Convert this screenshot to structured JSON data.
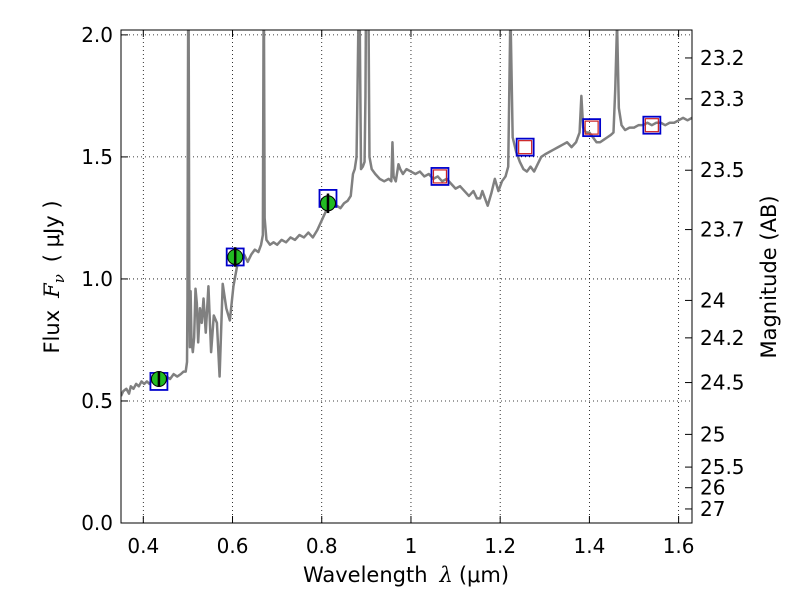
{
  "chart_data": {
    "type": "line",
    "x_axis": {
      "label_prefix": "Wavelength",
      "label_symbol": "λ",
      "label_unit": "(μm)",
      "range": [
        0.35,
        1.63
      ],
      "ticks": [
        0.4,
        0.6,
        0.8,
        1.0,
        1.2,
        1.4,
        1.6
      ],
      "tick_labels": [
        "0.4",
        "0.6",
        "0.8",
        "1",
        "1.2",
        "1.4",
        "1.6"
      ]
    },
    "y_axis_left": {
      "label_prefix": "Flux",
      "label_symbol": "F",
      "label_subscript": "ν",
      "label_unit": "( μJy )",
      "range": [
        0.0,
        2.02
      ],
      "ticks": [
        0.0,
        0.5,
        1.0,
        1.5,
        2.0
      ],
      "tick_labels": [
        "0.0",
        "0.5",
        "1.0",
        "1.5",
        "2.0"
      ]
    },
    "y_axis_right": {
      "label": "Magnitude (AB)",
      "tick_labels": [
        "23.2",
        "23.3",
        "23.5",
        "23.7",
        "24",
        "24.2",
        "24.5",
        "25",
        "25.5",
        "26",
        "27"
      ],
      "tick_magnitudes": [
        23.2,
        23.3,
        23.5,
        23.7,
        24.0,
        24.2,
        24.5,
        25.0,
        25.5,
        26.0,
        27.0
      ]
    },
    "grid": true,
    "colors": {
      "spectrum": "#808080",
      "detection_fill": "#22bb22",
      "model_box": "#0000cc",
      "upper_limit_box": "#cc2222"
    },
    "series": [
      {
        "kind": "model_spectrum",
        "points": [
          [
            0.35,
            0.52
          ],
          [
            0.355,
            0.54
          ],
          [
            0.362,
            0.55
          ],
          [
            0.368,
            0.53
          ],
          [
            0.372,
            0.56
          ],
          [
            0.378,
            0.55
          ],
          [
            0.384,
            0.57
          ],
          [
            0.39,
            0.56
          ],
          [
            0.396,
            0.58
          ],
          [
            0.402,
            0.57
          ],
          [
            0.408,
            0.58
          ],
          [
            0.414,
            0.57
          ],
          [
            0.42,
            0.59
          ],
          [
            0.428,
            0.58
          ],
          [
            0.436,
            0.59
          ],
          [
            0.444,
            0.58
          ],
          [
            0.452,
            0.6
          ],
          [
            0.46,
            0.59
          ],
          [
            0.468,
            0.61
          ],
          [
            0.476,
            0.6
          ],
          [
            0.484,
            0.61
          ],
          [
            0.49,
            0.62
          ],
          [
            0.495,
            0.62
          ],
          [
            0.498,
            0.66
          ],
          [
            0.499,
            0.92
          ],
          [
            0.5,
            1.7
          ],
          [
            0.501,
            2.4
          ],
          [
            0.502,
            1.8
          ],
          [
            0.503,
            1.0
          ],
          [
            0.5045,
            0.72
          ],
          [
            0.506,
            0.95
          ],
          [
            0.508,
            0.75
          ],
          [
            0.511,
            0.7
          ],
          [
            0.514,
            0.76
          ],
          [
            0.517,
            0.96
          ],
          [
            0.52,
            0.9
          ],
          [
            0.523,
            0.74
          ],
          [
            0.527,
            0.88
          ],
          [
            0.531,
            0.82
          ],
          [
            0.535,
            0.92
          ],
          [
            0.54,
            0.78
          ],
          [
            0.546,
            0.97
          ],
          [
            0.552,
            0.7
          ],
          [
            0.558,
            0.85
          ],
          [
            0.565,
            0.82
          ],
          [
            0.571,
            0.6
          ],
          [
            0.578,
            0.98
          ],
          [
            0.586,
            0.88
          ],
          [
            0.594,
            0.83
          ],
          [
            0.602,
            0.97
          ],
          [
            0.61,
            1.05
          ],
          [
            0.618,
            1.08
          ],
          [
            0.626,
            1.1
          ],
          [
            0.634,
            1.07
          ],
          [
            0.642,
            1.1
          ],
          [
            0.65,
            1.12
          ],
          [
            0.658,
            1.11
          ],
          [
            0.664,
            1.14
          ],
          [
            0.668,
            1.18
          ],
          [
            0.67,
            2.3
          ],
          [
            0.672,
            1.25
          ],
          [
            0.676,
            1.16
          ],
          [
            0.684,
            1.14
          ],
          [
            0.692,
            1.15
          ],
          [
            0.7,
            1.14
          ],
          [
            0.71,
            1.16
          ],
          [
            0.72,
            1.15
          ],
          [
            0.73,
            1.17
          ],
          [
            0.74,
            1.16
          ],
          [
            0.75,
            1.18
          ],
          [
            0.76,
            1.17
          ],
          [
            0.77,
            1.19
          ],
          [
            0.78,
            1.17
          ],
          [
            0.79,
            1.2
          ],
          [
            0.8,
            1.24
          ],
          [
            0.81,
            1.28
          ],
          [
            0.818,
            1.31
          ],
          [
            0.826,
            1.3
          ],
          [
            0.834,
            1.3
          ],
          [
            0.842,
            1.29
          ],
          [
            0.85,
            1.31
          ],
          [
            0.858,
            1.32
          ],
          [
            0.865,
            1.34
          ],
          [
            0.87,
            1.43
          ],
          [
            0.874,
            1.45
          ],
          [
            0.878,
            1.5
          ],
          [
            0.88,
            1.75
          ],
          [
            0.884,
            2.3
          ],
          [
            0.888,
            1.45
          ],
          [
            0.892,
            1.46
          ],
          [
            0.896,
            1.48
          ],
          [
            0.898,
            1.75
          ],
          [
            0.9,
            2.4
          ],
          [
            0.904,
            2.3
          ],
          [
            0.907,
            1.5
          ],
          [
            0.912,
            1.45
          ],
          [
            0.92,
            1.43
          ],
          [
            0.93,
            1.41
          ],
          [
            0.94,
            1.4
          ],
          [
            0.95,
            1.41
          ],
          [
            0.956,
            1.4
          ],
          [
            0.9585,
            1.56
          ],
          [
            0.961,
            1.42
          ],
          [
            0.966,
            1.4
          ],
          [
            0.972,
            1.47
          ],
          [
            0.976,
            1.45
          ],
          [
            0.982,
            1.43
          ],
          [
            0.99,
            1.45
          ],
          [
            1.0,
            1.44
          ],
          [
            1.01,
            1.43
          ],
          [
            1.02,
            1.44
          ],
          [
            1.03,
            1.42
          ],
          [
            1.04,
            1.43
          ],
          [
            1.05,
            1.41
          ],
          [
            1.06,
            1.42
          ],
          [
            1.07,
            1.4
          ],
          [
            1.08,
            1.41
          ],
          [
            1.09,
            1.39
          ],
          [
            1.1,
            1.37
          ],
          [
            1.11,
            1.38
          ],
          [
            1.12,
            1.36
          ],
          [
            1.13,
            1.34
          ],
          [
            1.14,
            1.36
          ],
          [
            1.148,
            1.33
          ],
          [
            1.155,
            1.33
          ],
          [
            1.16,
            1.36
          ],
          [
            1.166,
            1.33
          ],
          [
            1.172,
            1.3
          ],
          [
            1.18,
            1.35
          ],
          [
            1.188,
            1.41
          ],
          [
            1.196,
            1.36
          ],
          [
            1.204,
            1.4
          ],
          [
            1.212,
            1.42
          ],
          [
            1.218,
            1.46
          ],
          [
            1.223,
            2.1
          ],
          [
            1.228,
            1.58
          ],
          [
            1.236,
            1.52
          ],
          [
            1.244,
            1.48
          ],
          [
            1.252,
            1.45
          ],
          [
            1.26,
            1.44
          ],
          [
            1.268,
            1.46
          ],
          [
            1.276,
            1.44
          ],
          [
            1.284,
            1.47
          ],
          [
            1.292,
            1.5
          ],
          [
            1.3,
            1.51
          ],
          [
            1.31,
            1.52
          ],
          [
            1.32,
            1.53
          ],
          [
            1.33,
            1.54
          ],
          [
            1.34,
            1.55
          ],
          [
            1.35,
            1.56
          ],
          [
            1.36,
            1.54
          ],
          [
            1.37,
            1.56
          ],
          [
            1.378,
            1.6
          ],
          [
            1.382,
            1.75
          ],
          [
            1.386,
            1.62
          ],
          [
            1.392,
            1.6
          ],
          [
            1.4,
            1.6
          ],
          [
            1.408,
            1.58
          ],
          [
            1.416,
            1.56
          ],
          [
            1.424,
            1.56
          ],
          [
            1.432,
            1.57
          ],
          [
            1.44,
            1.58
          ],
          [
            1.448,
            1.59
          ],
          [
            1.454,
            1.6
          ],
          [
            1.458,
            1.78
          ],
          [
            1.462,
            2.05
          ],
          [
            1.466,
            1.7
          ],
          [
            1.472,
            1.63
          ],
          [
            1.48,
            1.61
          ],
          [
            1.49,
            1.62
          ],
          [
            1.5,
            1.62
          ],
          [
            1.51,
            1.63
          ],
          [
            1.52,
            1.63
          ],
          [
            1.53,
            1.64
          ],
          [
            1.54,
            1.63
          ],
          [
            1.55,
            1.64
          ],
          [
            1.56,
            1.64
          ],
          [
            1.57,
            1.63
          ],
          [
            1.58,
            1.64
          ],
          [
            1.59,
            1.64
          ],
          [
            1.6,
            1.65
          ],
          [
            1.61,
            1.66
          ],
          [
            1.62,
            1.65
          ],
          [
            1.63,
            1.66
          ]
        ]
      },
      {
        "kind": "model_photometry",
        "points": [
          [
            0.435,
            0.58
          ],
          [
            0.606,
            1.09
          ],
          [
            0.814,
            1.33
          ],
          [
            1.065,
            1.42
          ],
          [
            1.256,
            1.54
          ],
          [
            1.405,
            1.62
          ],
          [
            1.54,
            1.63
          ]
        ]
      },
      {
        "kind": "detections",
        "points": [
          [
            0.435,
            0.59,
            0.03
          ],
          [
            0.606,
            1.09,
            0.04
          ],
          [
            0.814,
            1.31,
            0.04
          ]
        ]
      },
      {
        "kind": "upper_limits",
        "points": [
          [
            1.065,
            1.42
          ],
          [
            1.256,
            1.54
          ],
          [
            1.405,
            1.62
          ],
          [
            1.54,
            1.63
          ]
        ]
      }
    ]
  }
}
